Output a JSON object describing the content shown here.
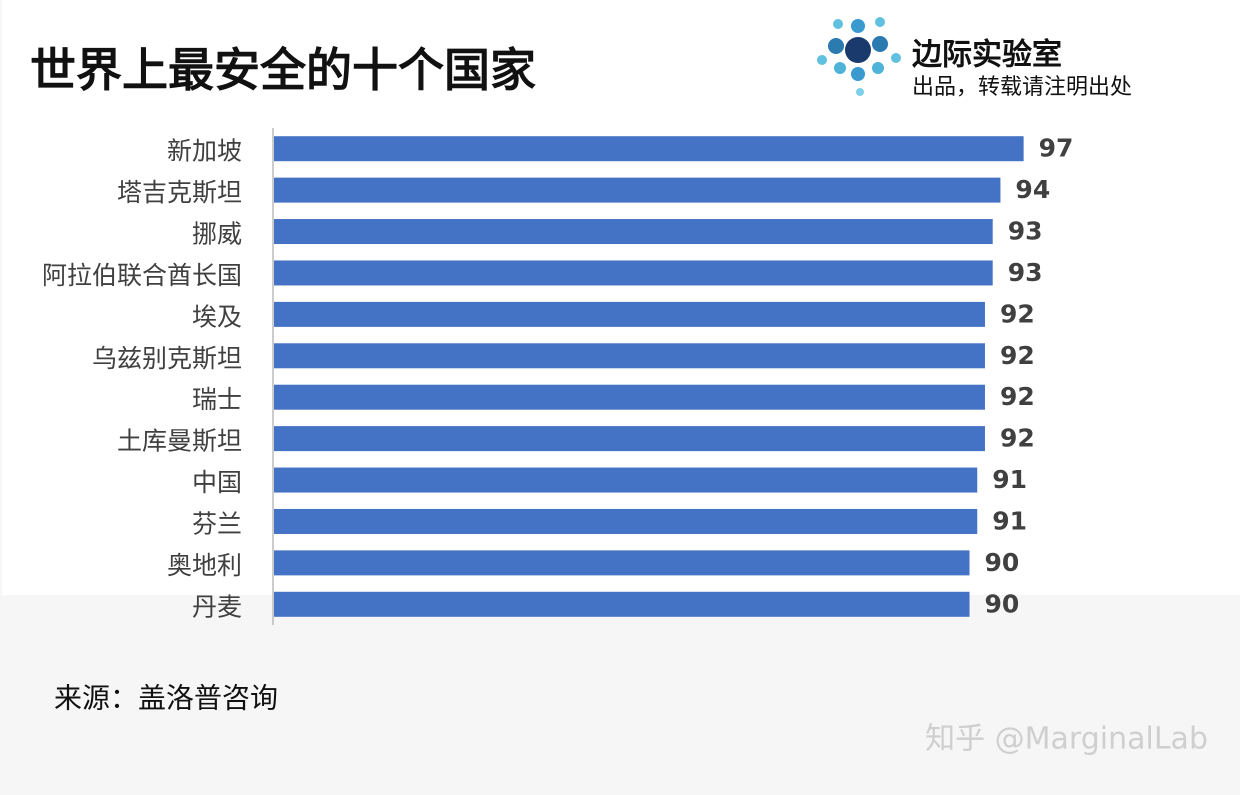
{
  "chart_data": {
    "type": "bar",
    "orientation": "horizontal",
    "title": "世界上最安全的十个国家",
    "brand": "边际实验室",
    "brand_note": "出品，转载请注明出处",
    "source": "来源：盖洛普咨询",
    "watermark": "知乎 @MarginalLab",
    "categories": [
      "新加坡",
      "塔吉克斯坦",
      "挪威",
      "阿拉伯联合酋长国",
      "埃及",
      "乌兹别克斯坦",
      "瑞士",
      "土库曼斯坦",
      "中国",
      "芬兰",
      "奥地利",
      "丹麦"
    ],
    "values": [
      97,
      94,
      93,
      93,
      92,
      92,
      92,
      92,
      91,
      91,
      90,
      90
    ],
    "color": "#4472c4",
    "xlim": [
      0,
      125
    ]
  }
}
